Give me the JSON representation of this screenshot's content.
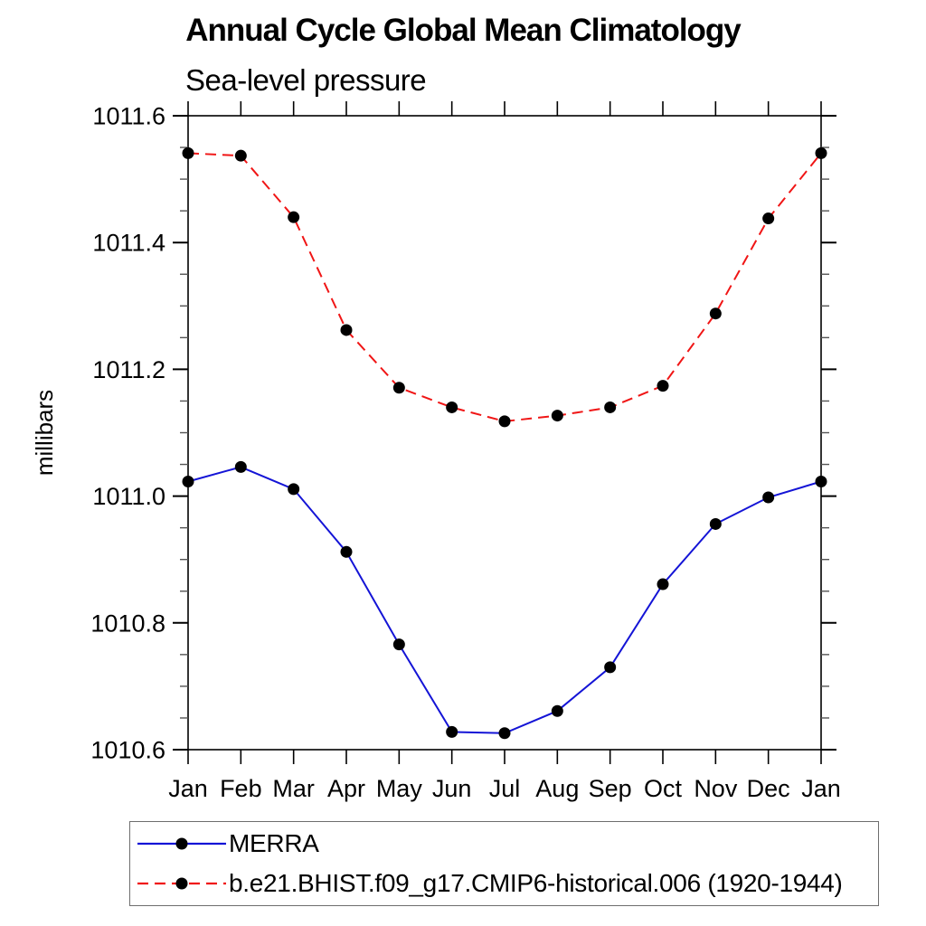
{
  "header": {
    "title": "Annual Cycle Global Mean Climatology",
    "subtitle": "Sea-level pressure"
  },
  "chart_data": {
    "type": "line",
    "title": "Annual Cycle Global Mean Climatology",
    "subtitle": "Sea-level pressure",
    "xlabel": "",
    "ylabel": "millibars",
    "categories": [
      "Jan",
      "Feb",
      "Mar",
      "Apr",
      "May",
      "Jun",
      "Jul",
      "Aug",
      "Sep",
      "Oct",
      "Nov",
      "Dec",
      "Jan"
    ],
    "ylim": [
      1010.6,
      1011.6
    ],
    "ytick_labels": [
      "1010.6",
      "1010.8",
      "1011.0",
      "1011.2",
      "1011.4",
      "1011.6"
    ],
    "ytick_major_step": 0.2,
    "ytick_minor_step": 0.05,
    "grid": false,
    "frame": "box",
    "tick_direction": "out",
    "legend_position": "bottom-left-box",
    "axis_color": "#000000",
    "marker": "filled-circle",
    "marker_color": "#000000",
    "series": [
      {
        "name": "MERRA",
        "color": "#1414d6",
        "line_style": "solid",
        "values": [
          1011.023,
          1011.046,
          1011.011,
          1010.912,
          1010.766,
          1010.628,
          1010.626,
          1010.661,
          1010.73,
          1010.861,
          1010.956,
          1010.998,
          1011.023
        ]
      },
      {
        "name": "b.e21.BHIST.f09_g17.CMIP6-historical.006 (1920-1944)",
        "color": "#f01515",
        "line_style": "dashed",
        "values": [
          1011.541,
          1011.537,
          1011.44,
          1011.262,
          1011.171,
          1011.14,
          1011.118,
          1011.127,
          1011.14,
          1011.174,
          1011.288,
          1011.438,
          1011.541
        ]
      }
    ]
  }
}
